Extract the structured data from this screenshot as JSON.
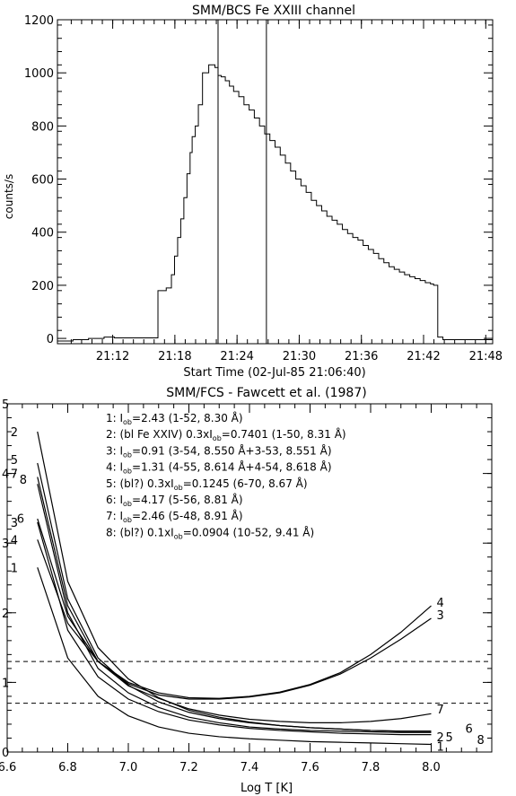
{
  "chart_data": [
    {
      "type": "line",
      "title": "SMM/BCS  Fe XXIII channel",
      "xlabel": "Start Time (02-Jul-85 21:06:40)",
      "ylabel": "counts/s",
      "xlim": [
        0,
        42
      ],
      "ylim": [
        -20,
        1200
      ],
      "x_unit": "minutes after 21:06:40",
      "xticks": [
        {
          "value": 5.333,
          "label": "21:12"
        },
        {
          "value": 11.333,
          "label": "21:18"
        },
        {
          "value": 17.333,
          "label": "21:24"
        },
        {
          "value": 23.333,
          "label": "21:30"
        },
        {
          "value": 29.333,
          "label": "21:36"
        },
        {
          "value": 35.333,
          "label": "21:42"
        },
        {
          "value": 41.333,
          "label": "21:48"
        }
      ],
      "yticks": [
        0,
        200,
        400,
        600,
        800,
        1000,
        1200
      ],
      "vertical_lines": [
        {
          "x": "21:22:10"
        },
        {
          "x": "21:26:50"
        }
      ],
      "series": [
        {
          "step": true,
          "x": [
            0.0,
            1.5,
            3.0,
            4.5,
            5.5,
            7.0,
            9.7,
            10.5,
            11.0,
            11.3,
            11.6,
            11.9,
            12.2,
            12.5,
            12.8,
            13.0,
            13.3,
            13.6,
            14.0,
            14.6,
            15.2,
            15.5,
            15.8,
            16.2,
            16.6,
            17.0,
            17.5,
            18.0,
            18.5,
            19.0,
            19.5,
            20.0,
            20.5,
            21.0,
            21.5,
            22.0,
            22.5,
            23.0,
            23.5,
            24.0,
            24.5,
            25.0,
            25.5,
            26.0,
            26.5,
            27.0,
            27.5,
            28.0,
            28.5,
            29.0,
            29.5,
            30.0,
            30.5,
            31.0,
            31.5,
            32.0,
            32.5,
            33.0,
            33.5,
            34.0,
            34.5,
            35.0,
            35.5,
            36.0,
            36.3,
            36.7,
            37.2
          ],
          "y": [
            -10,
            -5,
            0,
            5,
            2,
            2,
            180,
            190,
            240,
            310,
            380,
            450,
            530,
            620,
            700,
            760,
            800,
            880,
            1000,
            1030,
            1020,
            990,
            985,
            970,
            950,
            930,
            910,
            880,
            860,
            830,
            800,
            770,
            745,
            720,
            690,
            660,
            630,
            600,
            575,
            550,
            520,
            500,
            480,
            460,
            445,
            430,
            410,
            395,
            380,
            370,
            350,
            335,
            320,
            300,
            285,
            270,
            260,
            250,
            240,
            232,
            225,
            218,
            210,
            205,
            200,
            5,
            -5
          ]
        }
      ]
    },
    {
      "type": "line",
      "title": "SMM/FCS - Fawcett et al. (1987)",
      "xlabel": "Log T [K]",
      "ylabel": "",
      "xlim": [
        6.6,
        8.2
      ],
      "ylim": [
        0,
        5
      ],
      "xticks": [
        "6.6",
        "6.8",
        "7.0",
        "7.2",
        "7.4",
        "7.6",
        "7.8",
        "8.0"
      ],
      "yticks": [
        "0",
        "1",
        "2",
        "3",
        "4",
        "5"
      ],
      "hlines": [
        1.3,
        0.7
      ],
      "legend_lines": [
        "1: I_ob=2.43 (1-52, 8.30 Å)",
        "2: (bl Fe XXIV) 0.3xI_ob=0.7401 (1-50, 8.31 Å)",
        "3: I_ob=0.91 (3-54, 8.550 Å+3-53, 8.551 Å)",
        "4: I_ob=1.31 (4-55, 8.614 Å+4-54, 8.618 Å)",
        "5: (bl?) 0.3xI_ob=0.1245 (6-70, 8.67 Å)",
        "6: I_ob=4.17 (5-56, 8.81 Å)",
        "7: I_ob=2.46 (5-48, 8.91 Å)",
        "8: (bl?) 0.1xI_ob=0.0904 (10-52, 9.41 Å)"
      ],
      "legend_rows": [
        {
          "num": "1:",
          "pre": "I",
          "sub": "ob",
          "post": "=2.43 (1-52, 8.30 Å)"
        },
        {
          "num": "2:",
          "pre": "(bl Fe XXIV) 0.3xI",
          "sub": "ob",
          "post": "=0.7401 (1-50, 8.31 Å)"
        },
        {
          "num": "3:",
          "pre": "I",
          "sub": "ob",
          "post": "=0.91 (3-54, 8.550 Å+3-53, 8.551 Å)"
        },
        {
          "num": "4:",
          "pre": "I",
          "sub": "ob",
          "post": "=1.31 (4-55, 8.614 Å+4-54, 8.618 Å)"
        },
        {
          "num": "5:",
          "pre": "(bl?) 0.3xI",
          "sub": "ob",
          "post": "=0.1245 (6-70, 8.67 Å)"
        },
        {
          "num": "6:",
          "pre": "I",
          "sub": "ob",
          "post": "=4.17 (5-56, 8.81 Å)"
        },
        {
          "num": "7:",
          "pre": "I",
          "sub": "ob",
          "post": "=2.46 (5-48, 8.91 Å)"
        },
        {
          "num": "8:",
          "pre": "(bl?) 0.1xI",
          "sub": "ob",
          "post": "=0.0904 (10-52, 9.41 Å)"
        }
      ],
      "x": [
        6.7,
        6.8,
        6.9,
        7.0,
        7.1,
        7.2,
        7.3,
        7.4,
        7.5,
        7.6,
        7.7,
        7.8,
        7.9,
        8.0
      ],
      "series": [
        {
          "name": "1",
          "values": [
            2.65,
            1.35,
            0.8,
            0.52,
            0.36,
            0.27,
            0.22,
            0.19,
            0.17,
            0.15,
            0.14,
            0.13,
            0.12,
            0.11
          ]
        },
        {
          "name": "2",
          "values": [
            4.6,
            2.45,
            1.5,
            1.05,
            0.78,
            0.6,
            0.5,
            0.43,
            0.38,
            0.35,
            0.33,
            0.31,
            0.3,
            0.3
          ]
        },
        {
          "name": "3",
          "values": [
            3.35,
            1.95,
            1.3,
            0.98,
            0.82,
            0.76,
            0.76,
            0.79,
            0.85,
            0.96,
            1.12,
            1.35,
            1.62,
            1.92
          ]
        },
        {
          "name": "4",
          "values": [
            3.05,
            1.85,
            1.3,
            1.0,
            0.85,
            0.78,
            0.77,
            0.8,
            0.86,
            0.97,
            1.14,
            1.4,
            1.72,
            2.1
          ]
        },
        {
          "name": "5",
          "values": [
            4.15,
            2.2,
            1.35,
            0.96,
            0.72,
            0.57,
            0.48,
            0.42,
            0.38,
            0.35,
            0.33,
            0.31,
            0.3,
            0.3
          ]
        },
        {
          "name": "6",
          "values": [
            3.3,
            1.75,
            1.08,
            0.76,
            0.58,
            0.46,
            0.39,
            0.34,
            0.31,
            0.29,
            0.27,
            0.26,
            0.25,
            0.25
          ]
        },
        {
          "name": "7",
          "values": [
            3.95,
            2.1,
            1.3,
            0.95,
            0.77,
            0.62,
            0.53,
            0.47,
            0.44,
            0.42,
            0.42,
            0.44,
            0.48,
            0.55
          ]
        },
        {
          "name": "8",
          "values": [
            3.85,
            2.0,
            1.2,
            0.85,
            0.64,
            0.5,
            0.42,
            0.36,
            0.33,
            0.31,
            0.3,
            0.29,
            0.28,
            0.28
          ]
        }
      ],
      "curve_labels_left": [
        {
          "text": "2",
          "y": 4.6
        },
        {
          "text": "5",
          "y": 4.2
        },
        {
          "text": "7",
          "y": 4.0
        },
        {
          "text": "8",
          "y": 3.92
        },
        {
          "text": "3",
          "y": 3.3
        },
        {
          "text": "6",
          "y": 3.36
        },
        {
          "text": "4",
          "y": 3.05
        },
        {
          "text": "1",
          "y": 2.65
        }
      ],
      "curve_labels_right": [
        {
          "text": "4",
          "y": 2.15
        },
        {
          "text": "3",
          "y": 1.97
        },
        {
          "text": "7",
          "y": 0.62
        },
        {
          "text": "2",
          "y": 0.32
        },
        {
          "text": "5",
          "y": 0.32
        },
        {
          "text": "6",
          "y": 0.34
        },
        {
          "text": "8",
          "y": 0.27
        },
        {
          "text": "1",
          "y": 0.12
        }
      ]
    }
  ]
}
